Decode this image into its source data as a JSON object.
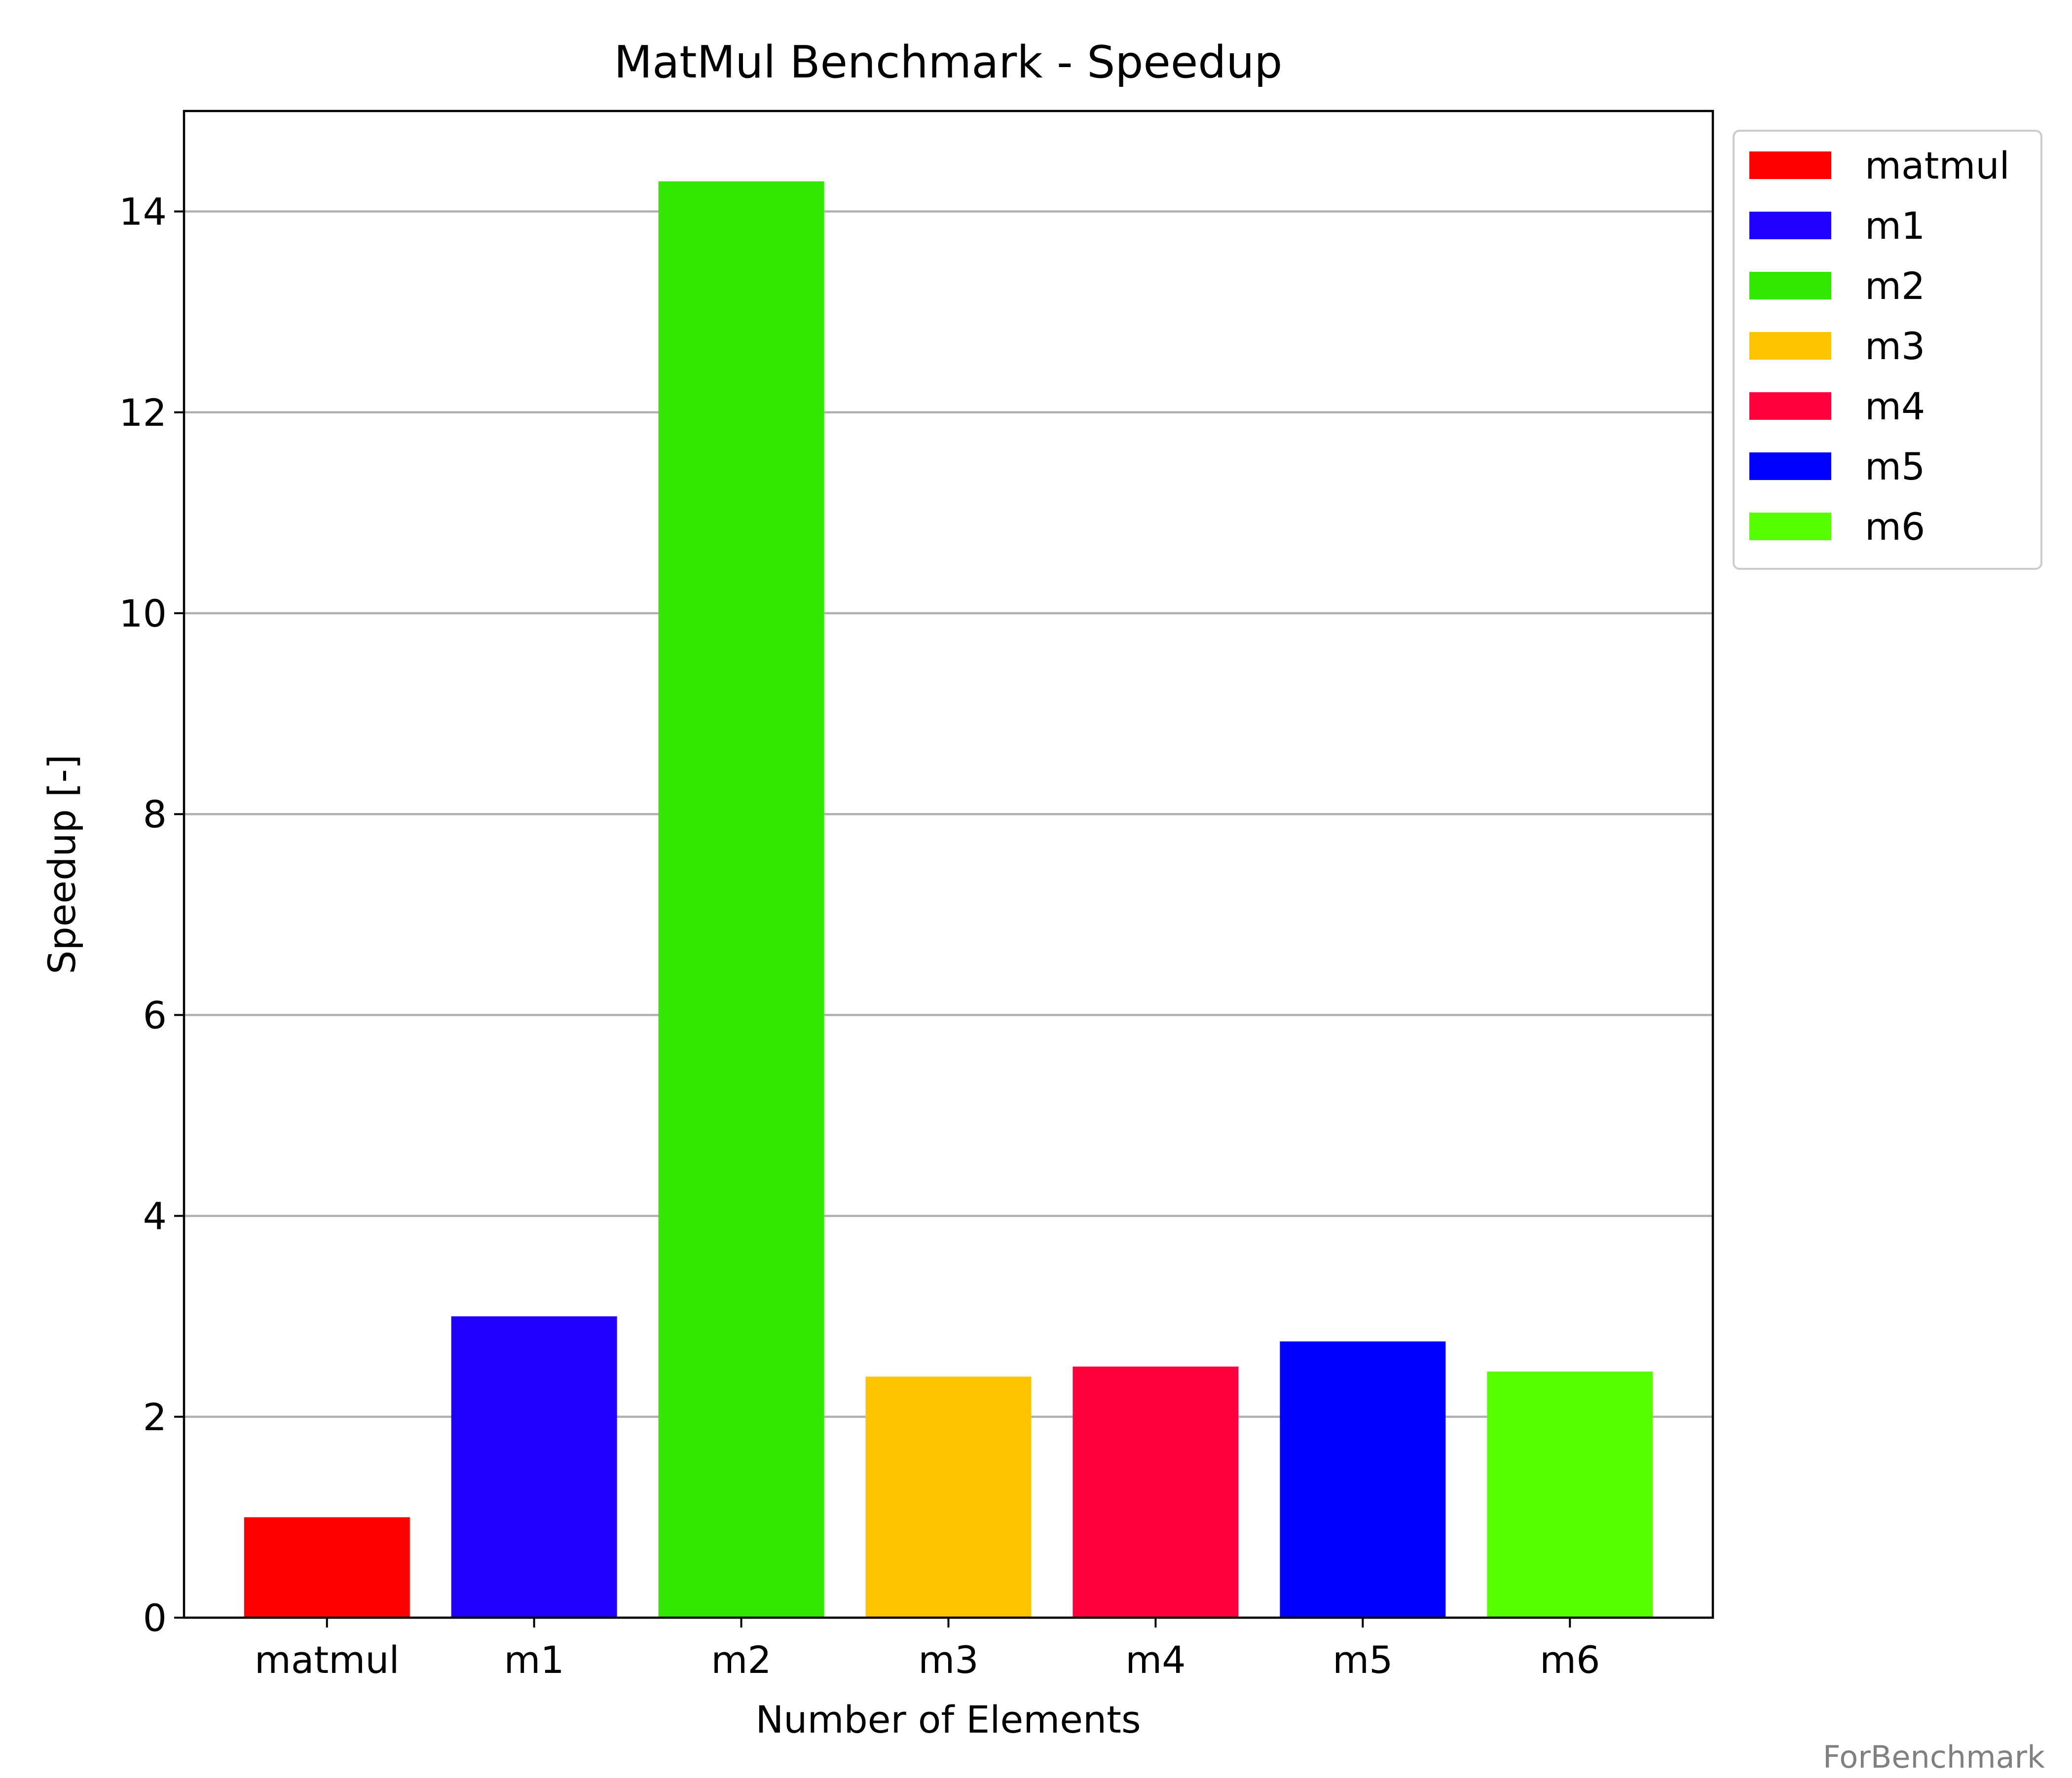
{
  "chart_data": {
    "type": "bar",
    "title": "MatMul Benchmark - Speedup",
    "xlabel": "Number of Elements",
    "ylabel": "Speedup [-]",
    "ylim": [
      0,
      15
    ],
    "yticks": [
      0,
      2,
      4,
      6,
      8,
      10,
      12,
      14
    ],
    "grid": "horizontal",
    "legend_position": "outside-top-right",
    "categories": [
      "matmul",
      "m1",
      "m2",
      "m3",
      "m4",
      "m5",
      "m6"
    ],
    "values": [
      1.0,
      3.0,
      14.3,
      2.4,
      2.5,
      2.75,
      2.45
    ],
    "colors": [
      "#ff0000",
      "#1f00ff",
      "#33e800",
      "#ffc400",
      "#ff003c",
      "#0000ff",
      "#55ff00"
    ],
    "legend": [
      "matmul",
      "m1",
      "m2",
      "m3",
      "m4",
      "m5",
      "m6"
    ]
  },
  "watermark": "ForBenchmark"
}
